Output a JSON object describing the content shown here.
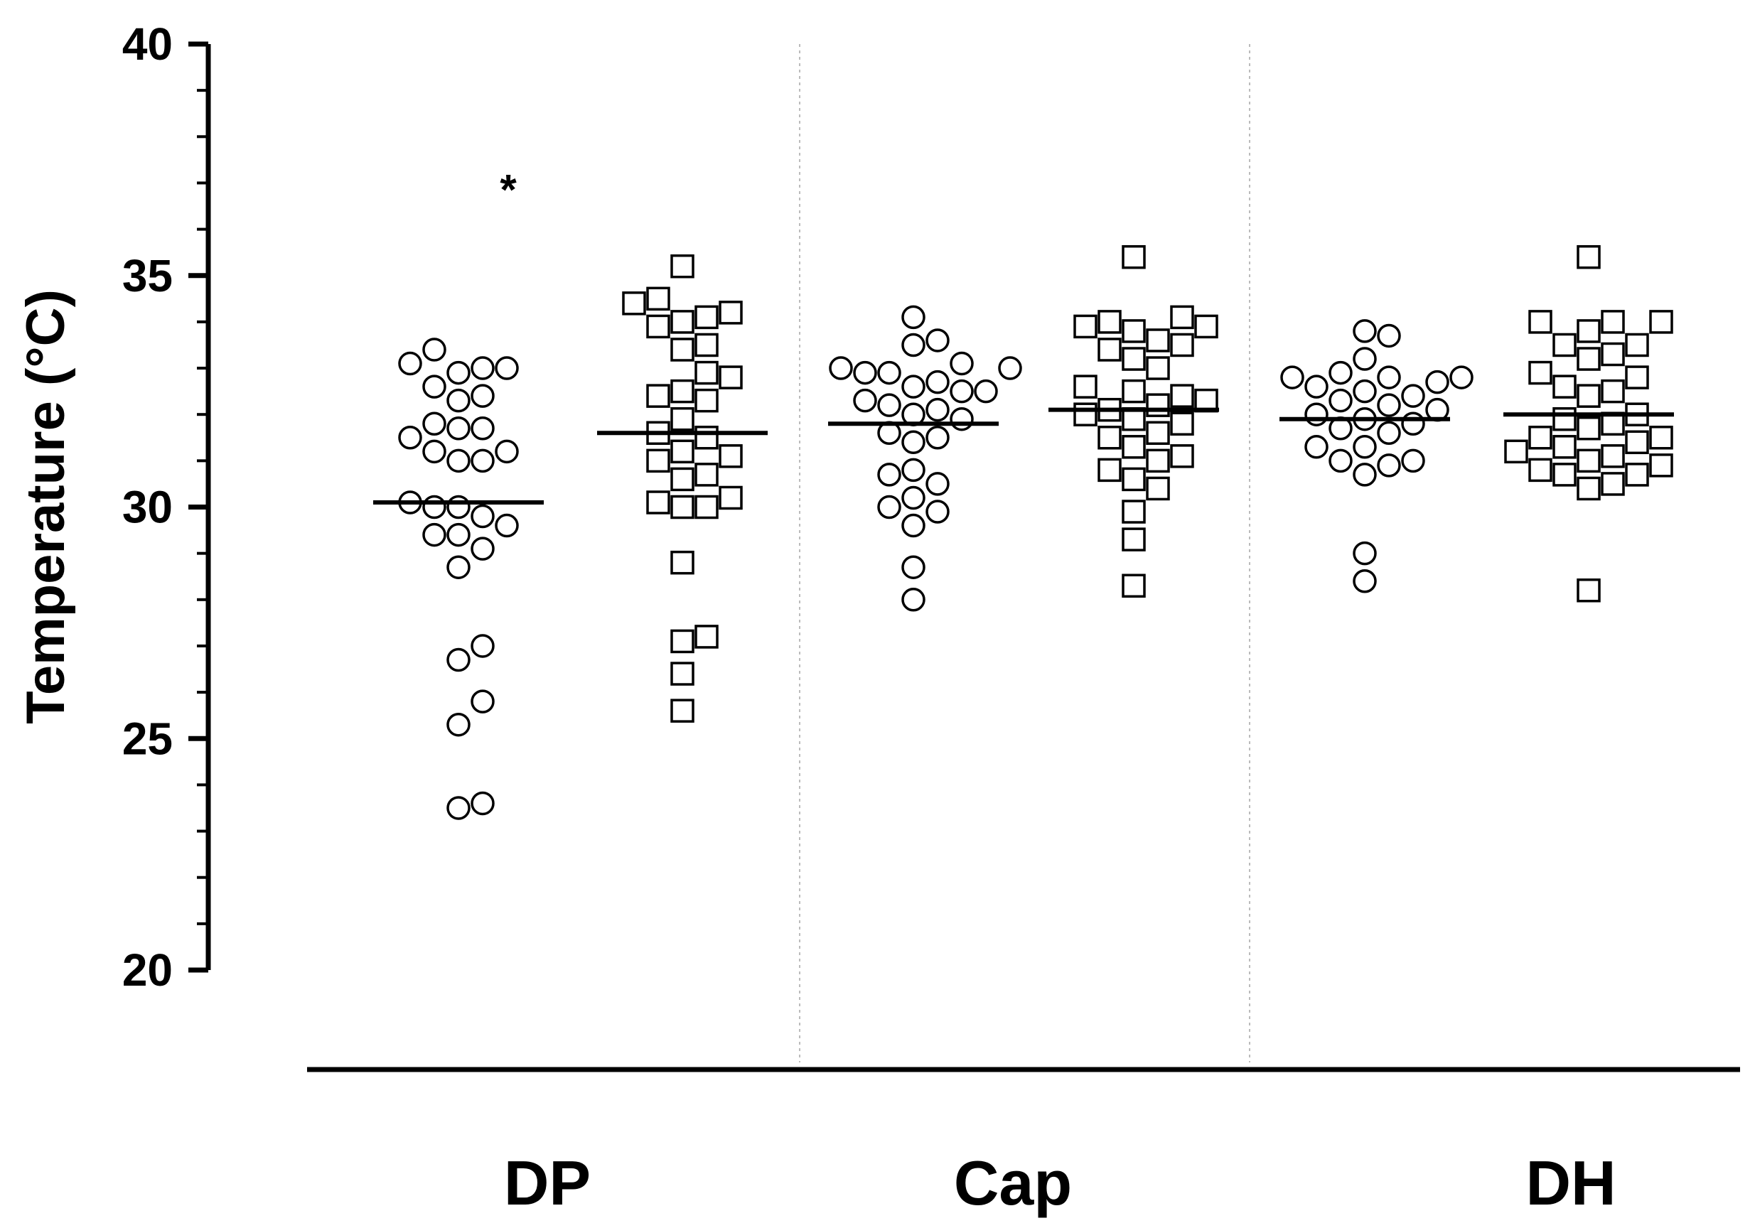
{
  "chart_data": {
    "type": "scatter",
    "title": "",
    "xlabel": "",
    "ylabel": "Temperature (°C)",
    "ylim": [
      20,
      40
    ],
    "yticks": [
      20,
      25,
      30,
      35,
      40
    ],
    "categories": [
      "DP",
      "Cap",
      "DH"
    ],
    "annotation": {
      "text": "*",
      "category": "DP",
      "series": "circles",
      "y": 37.0
    },
    "series": [
      {
        "name": "circles",
        "marker": "circle",
        "groups": [
          {
            "category": "DP",
            "mean": 30.1,
            "values": [
              23.5,
              23.6,
              25.3,
              25.8,
              26.7,
              27.0,
              28.7,
              29.1,
              29.4,
              29.4,
              29.6,
              29.8,
              30.0,
              30.0,
              30.1,
              31.0,
              31.0,
              31.2,
              31.2,
              31.5,
              31.7,
              31.7,
              31.8,
              32.3,
              32.4,
              32.6,
              32.9,
              33.0,
              33.0,
              33.1,
              33.4
            ]
          },
          {
            "category": "Cap",
            "mean": 31.8,
            "values": [
              28.0,
              28.7,
              29.6,
              29.9,
              30.0,
              30.2,
              30.5,
              30.7,
              30.8,
              31.4,
              31.5,
              31.6,
              31.9,
              32.0,
              32.1,
              32.2,
              32.3,
              32.5,
              32.5,
              32.6,
              32.7,
              32.9,
              32.9,
              33.0,
              33.0,
              33.1,
              33.5,
              33.6,
              34.1
            ]
          },
          {
            "category": "DH",
            "mean": 31.9,
            "values": [
              28.4,
              29.0,
              30.7,
              30.9,
              31.0,
              31.0,
              31.3,
              31.3,
              31.6,
              31.7,
              31.8,
              31.9,
              32.0,
              32.1,
              32.2,
              32.3,
              32.4,
              32.5,
              32.6,
              32.7,
              32.8,
              32.8,
              32.8,
              32.9,
              33.2,
              33.7,
              33.8
            ]
          }
        ]
      },
      {
        "name": "squares",
        "marker": "square",
        "groups": [
          {
            "category": "DP",
            "mean": 31.6,
            "values": [
              25.6,
              26.4,
              27.1,
              27.2,
              28.8,
              30.0,
              30.0,
              30.1,
              30.2,
              30.6,
              30.7,
              31.0,
              31.1,
              31.2,
              31.5,
              31.6,
              31.9,
              32.3,
              32.5,
              32.4,
              32.8,
              32.9,
              33.4,
              33.5,
              33.9,
              34.0,
              34.1,
              34.2,
              34.4,
              34.5,
              35.2
            ]
          },
          {
            "category": "Cap",
            "mean": 32.1,
            "values": [
              28.3,
              29.3,
              29.9,
              30.4,
              30.6,
              30.8,
              31.0,
              31.1,
              31.3,
              31.5,
              31.6,
              31.8,
              31.9,
              32.0,
              32.1,
              32.2,
              32.3,
              32.4,
              32.5,
              32.6,
              33.0,
              33.2,
              33.4,
              33.5,
              33.6,
              33.8,
              33.9,
              33.9,
              34.0,
              34.1,
              35.4
            ]
          },
          {
            "category": "DH",
            "mean": 32.0,
            "values": [
              28.2,
              30.4,
              30.5,
              30.7,
              30.7,
              30.8,
              30.9,
              31.0,
              31.1,
              31.2,
              31.3,
              31.4,
              31.5,
              31.5,
              31.7,
              31.8,
              31.9,
              32.0,
              32.4,
              32.5,
              32.6,
              32.8,
              32.9,
              33.2,
              33.3,
              33.5,
              33.5,
              33.8,
              34.0,
              34.0,
              34.0,
              35.4
            ]
          }
        ]
      }
    ]
  }
}
